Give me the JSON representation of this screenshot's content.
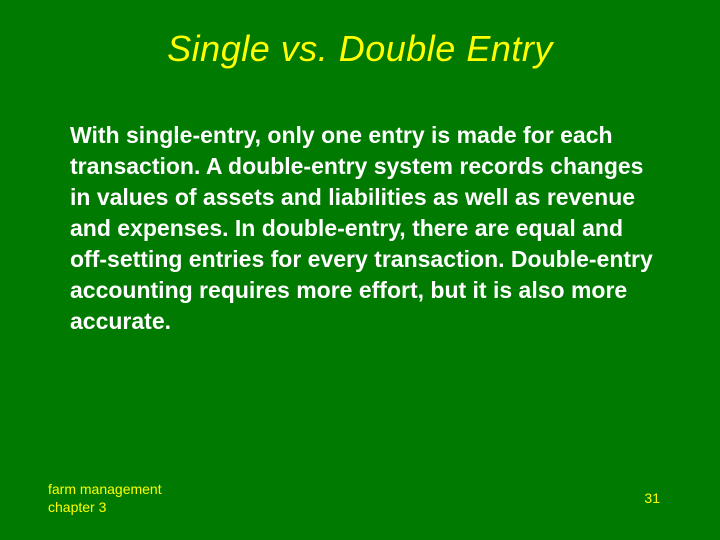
{
  "slide": {
    "background_color": "#007a00",
    "title": {
      "text": "Single vs. Double Entry",
      "color": "#ffff00",
      "fontsize": 36,
      "font_style": "italic",
      "font_weight": "normal"
    },
    "body": {
      "text": "With single-entry, only one entry is made for each transaction.  A double-entry system records changes in values of assets and liabilities as well as revenue and expenses.  In double-entry, there are equal and off-setting entries for every transaction.  Double-entry accounting requires more effort, but it is also more accurate.",
      "color": "#ffffff",
      "fontsize": 23,
      "font_weight": "bold"
    },
    "footer": {
      "left_line1": "farm management",
      "left_line2": "chapter 3",
      "page_number": "31",
      "color": "#ffff00",
      "fontsize": 14
    }
  }
}
